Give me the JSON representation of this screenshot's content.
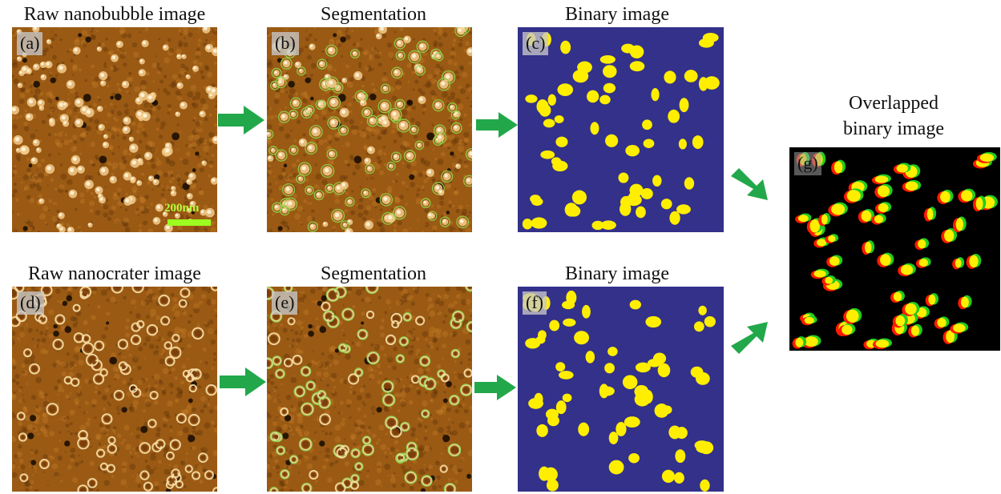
{
  "titles": {
    "raw_nanobubble": "Raw nanobubble image",
    "segmentation_top": "Segmentation",
    "binary_top": "Binary image",
    "raw_nanocrater": "Raw nanocrater image",
    "segmentation_bottom": "Segmentation",
    "binary_bottom": "Binary image",
    "overlapped_line1": "Overlapped",
    "overlapped_line2": "binary image"
  },
  "panel_labels": {
    "a": "(a)",
    "b": "(b)",
    "c": "(c)",
    "d": "(d)",
    "e": "(e)",
    "f": "(f)",
    "g": "(g)"
  },
  "scale_bar": {
    "label": "200nm"
  },
  "colors": {
    "afm_background": "#9a5a14",
    "binary_background": "#33318a",
    "blob": "#ffee00",
    "overlap_background": "#000000",
    "overlap_red": "#ff1a00",
    "overlap_green": "#22cc22",
    "arrow": "#22a84a",
    "segmentation_outline": "#8fd04a",
    "scale_bar": "#9cff1f"
  },
  "arrows": [
    {
      "name": "arrow-a-to-b",
      "direction": "right"
    },
    {
      "name": "arrow-b-to-c",
      "direction": "right"
    },
    {
      "name": "arrow-d-to-e",
      "direction": "right"
    },
    {
      "name": "arrow-e-to-f",
      "direction": "right"
    },
    {
      "name": "arrow-c-to-g",
      "direction": "down-right"
    },
    {
      "name": "arrow-f-to-g",
      "direction": "up-right"
    }
  ]
}
